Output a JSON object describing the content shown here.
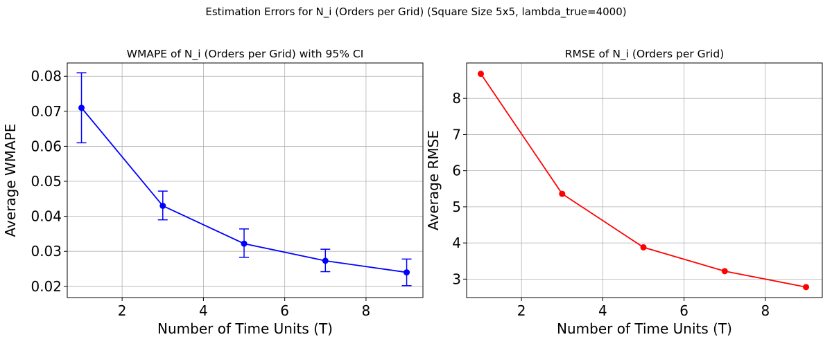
{
  "figure": {
    "suptitle": "Estimation Errors for N_i (Orders per Grid) (Square Size 5x5, lambda_true=4000)"
  },
  "chart_data": [
    {
      "type": "line",
      "title": "WMAPE of N_i (Orders per Grid) with 95% CI",
      "xlabel": "Number of Time Units (T)",
      "ylabel": "Average WMAPE",
      "x": [
        1,
        3,
        5,
        7,
        9
      ],
      "series": [
        {
          "values": [
            0.071,
            0.043,
            0.0322,
            0.0273,
            0.024
          ],
          "ci_lower": [
            0.061,
            0.039,
            0.0283,
            0.0242,
            0.0202
          ],
          "ci_upper": [
            0.081,
            0.0472,
            0.0364,
            0.0306,
            0.0278
          ],
          "color": "#0000ff",
          "marker": "circle"
        }
      ],
      "xlim": [
        0.65,
        9.4
      ],
      "ylim": [
        0.0168,
        0.0838
      ],
      "xticks": [
        2,
        4,
        6,
        8
      ],
      "xtick_labels": [
        "2",
        "4",
        "6",
        "8"
      ],
      "yticks": [
        0.02,
        0.03,
        0.04,
        0.05,
        0.06,
        0.07,
        0.08
      ],
      "ytick_labels": [
        "0.02",
        "0.03",
        "0.04",
        "0.05",
        "0.06",
        "0.07",
        "0.08"
      ],
      "grid": true
    },
    {
      "type": "line",
      "title": "RMSE of N_i (Orders per Grid)",
      "xlabel": "Number of Time Units (T)",
      "ylabel": "Average RMSE",
      "x": [
        1,
        3,
        5,
        7,
        9
      ],
      "series": [
        {
          "values": [
            8.68,
            5.36,
            3.88,
            3.22,
            2.78
          ],
          "color": "#ff0000",
          "marker": "circle"
        }
      ],
      "xlim": [
        0.65,
        9.4
      ],
      "ylim": [
        2.49,
        8.98
      ],
      "xticks": [
        2,
        4,
        6,
        8
      ],
      "xtick_labels": [
        "2",
        "4",
        "6",
        "8"
      ],
      "yticks": [
        3,
        4,
        5,
        6,
        7,
        8
      ],
      "ytick_labels": [
        "3",
        "4",
        "5",
        "6",
        "7",
        "8"
      ],
      "grid": true
    }
  ]
}
